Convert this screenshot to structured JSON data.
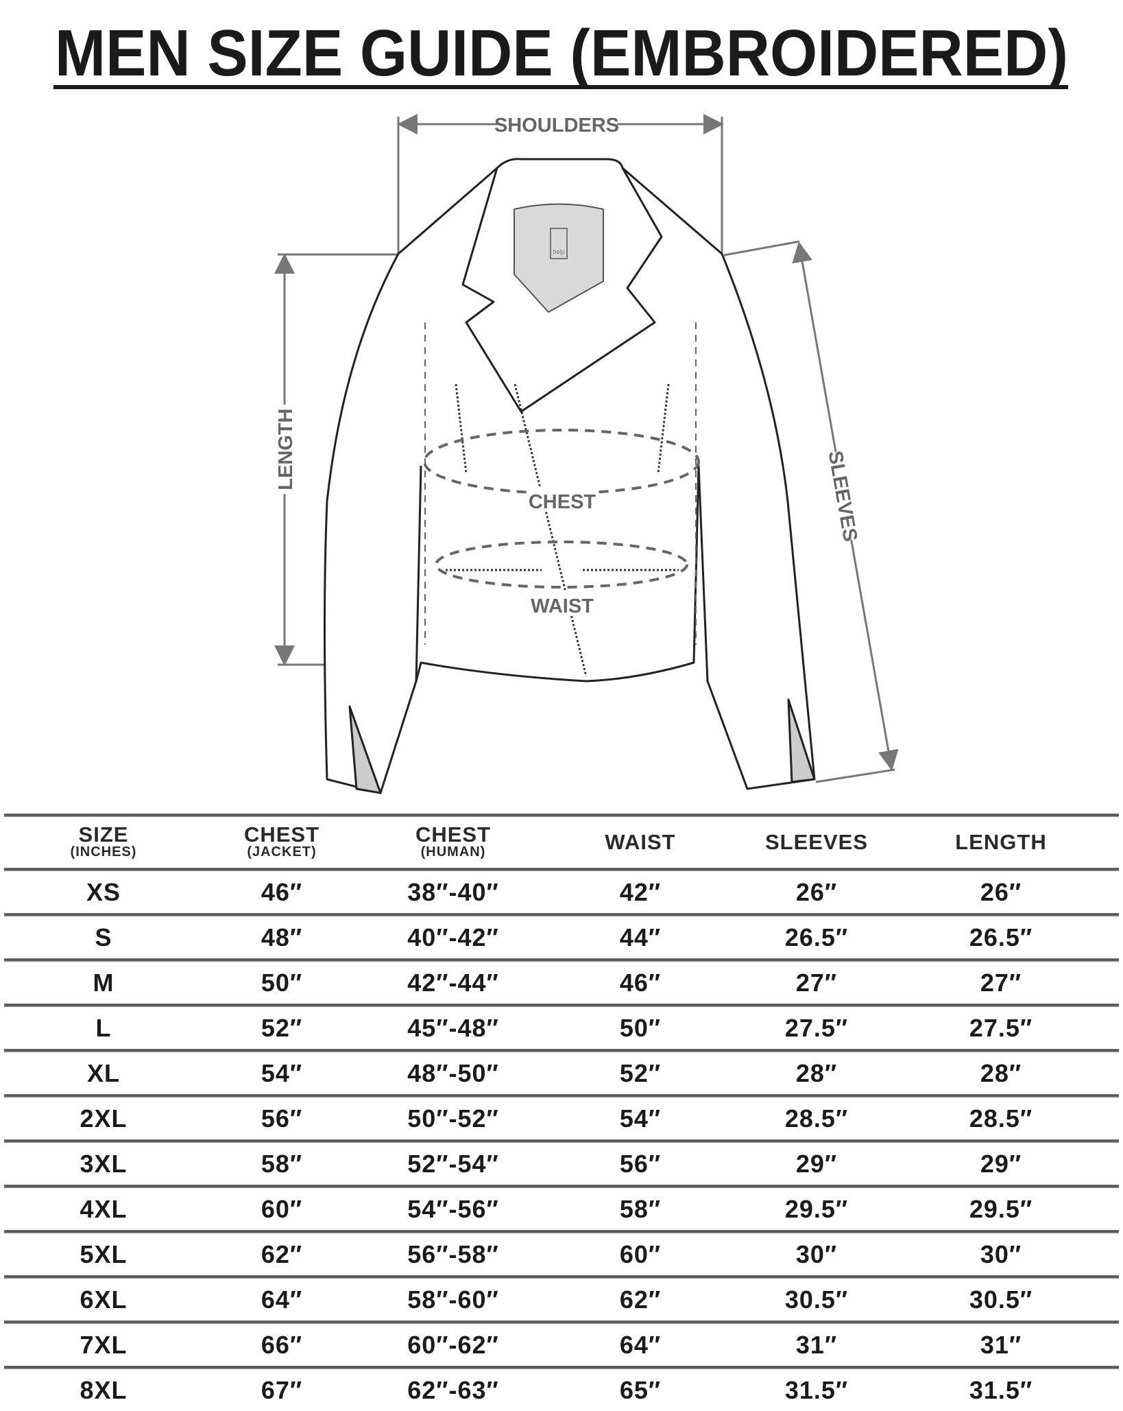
{
  "title": "MEN SIZE GUIDE (EMBROIDERED)",
  "diagram": {
    "labels": {
      "shoulders": "SHOULDERS",
      "length": "LENGTH",
      "sleeves": "SLEEVES",
      "chest": "CHEST",
      "waist": "WAIST"
    },
    "tag_text": "belp"
  },
  "table": {
    "headers": [
      {
        "main": "SIZE",
        "sub": "(INCHES)"
      },
      {
        "main": "CHEST",
        "sub": "(JACKET)"
      },
      {
        "main": "CHEST",
        "sub": "(HUMAN)"
      },
      {
        "main": "WAIST",
        "sub": ""
      },
      {
        "main": "SLEEVES",
        "sub": ""
      },
      {
        "main": "LENGTH",
        "sub": ""
      }
    ],
    "rows": [
      [
        "XS",
        "46″",
        "38″-40″",
        "42″",
        "26″",
        "26″"
      ],
      [
        "S",
        "48″",
        "40″-42″",
        "44″",
        "26.5″",
        "26.5″"
      ],
      [
        "M",
        "50″",
        "42″-44″",
        "46″",
        "27″",
        "27″"
      ],
      [
        "L",
        "52″",
        "45″-48″",
        "50″",
        "27.5″",
        "27.5″"
      ],
      [
        "XL",
        "54″",
        "48″-50″",
        "52″",
        "28″",
        "28″"
      ],
      [
        "2XL",
        "56″",
        "50″-52″",
        "54″",
        "28.5″",
        "28.5″"
      ],
      [
        "3XL",
        "58″",
        "52″-54″",
        "56″",
        "29″",
        "29″"
      ],
      [
        "4XL",
        "60″",
        "54″-56″",
        "58″",
        "29.5″",
        "29.5″"
      ],
      [
        "5XL",
        "62″",
        "56″-58″",
        "60″",
        "30″",
        "30″"
      ],
      [
        "6XL",
        "64″",
        "58″-60″",
        "62″",
        "30.5″",
        "30.5″"
      ],
      [
        "7XL",
        "66″",
        "60″-62″",
        "64″",
        "31″",
        "31″"
      ],
      [
        "8XL",
        "67″",
        "62″-63″",
        "65″",
        "31.5″",
        "31.5″"
      ]
    ]
  }
}
